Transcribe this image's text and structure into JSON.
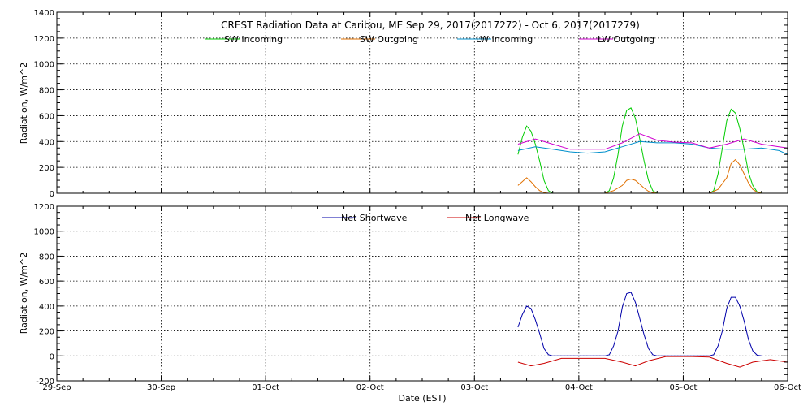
{
  "chart_data": [
    {
      "type": "line",
      "title": "CREST Radiation Data at Caribou, ME   Sep 29, 2017(2017272) - Oct  6, 2017(2017279)",
      "xlabel": "",
      "ylabel": "Radiation, W/m^2",
      "ylim": [
        0,
        1400
      ],
      "yticks": [
        0,
        200,
        400,
        600,
        800,
        1000,
        1200,
        1400
      ],
      "xlim": [
        "2017-09-29",
        "2017-10-06"
      ],
      "grid": true,
      "legend_placement": "top",
      "series": [
        {
          "name": "SW Incoming",
          "color": "#00cc00",
          "x": [
            "2017-10-03 10:00",
            "2017-10-03 11:00",
            "2017-10-03 12:00",
            "2017-10-03 13:00",
            "2017-10-03 14:00",
            "2017-10-03 15:00",
            "2017-10-03 16:00",
            "2017-10-03 17:00",
            "2017-10-03 18:00",
            "2017-10-04 06:00",
            "2017-10-04 07:00",
            "2017-10-04 08:00",
            "2017-10-04 09:00",
            "2017-10-04 10:00",
            "2017-10-04 11:00",
            "2017-10-04 12:00",
            "2017-10-04 13:00",
            "2017-10-04 14:00",
            "2017-10-04 15:00",
            "2017-10-04 16:00",
            "2017-10-04 17:00",
            "2017-10-04 18:00",
            "2017-10-05 06:00",
            "2017-10-05 07:00",
            "2017-10-05 08:00",
            "2017-10-05 09:00",
            "2017-10-05 10:00",
            "2017-10-05 11:00",
            "2017-10-05 12:00",
            "2017-10-05 13:00",
            "2017-10-05 14:00",
            "2017-10-05 15:00",
            "2017-10-05 16:00",
            "2017-10-05 17:00",
            "2017-10-05 18:00"
          ],
          "values": [
            300,
            430,
            520,
            480,
            380,
            250,
            100,
            20,
            0,
            0,
            20,
            120,
            300,
            520,
            640,
            660,
            580,
            420,
            250,
            100,
            20,
            0,
            0,
            20,
            150,
            350,
            560,
            650,
            620,
            500,
            340,
            160,
            60,
            10,
            0
          ]
        },
        {
          "name": "SW Outgoing",
          "color": "#e07000",
          "x": [
            "2017-10-03 10:00",
            "2017-10-03 11:00",
            "2017-10-03 12:00",
            "2017-10-03 13:00",
            "2017-10-03 14:00",
            "2017-10-03 15:00",
            "2017-10-03 16:00",
            "2017-10-03 17:00",
            "2017-10-04 06:00",
            "2017-10-04 08:00",
            "2017-10-04 10:00",
            "2017-10-04 11:00",
            "2017-10-04 12:00",
            "2017-10-04 13:00",
            "2017-10-04 14:00",
            "2017-10-04 15:00",
            "2017-10-04 16:00",
            "2017-10-04 17:00",
            "2017-10-04 18:00",
            "2017-10-05 06:00",
            "2017-10-05 08:00",
            "2017-10-05 10:00",
            "2017-10-05 11:00",
            "2017-10-05 12:00",
            "2017-10-05 13:00",
            "2017-10-05 14:00",
            "2017-10-05 15:00",
            "2017-10-05 16:00",
            "2017-10-05 17:00",
            "2017-10-05 18:00"
          ],
          "values": [
            60,
            90,
            120,
            90,
            50,
            20,
            5,
            0,
            0,
            20,
            60,
            100,
            110,
            100,
            70,
            40,
            15,
            5,
            0,
            0,
            30,
            120,
            230,
            260,
            220,
            150,
            80,
            30,
            8,
            0
          ]
        },
        {
          "name": "LW Incoming",
          "color": "#0090cc",
          "x": [
            "2017-10-03 10:00",
            "2017-10-03 14:00",
            "2017-10-03 18:00",
            "2017-10-03 22:00",
            "2017-10-04 02:00",
            "2017-10-04 06:00",
            "2017-10-04 10:00",
            "2017-10-04 14:00",
            "2017-10-04 18:00",
            "2017-10-04 22:00",
            "2017-10-05 02:00",
            "2017-10-05 06:00",
            "2017-10-05 10:00",
            "2017-10-05 14:00",
            "2017-10-05 18:00",
            "2017-10-05 22:00",
            "2017-10-06 00:00"
          ],
          "values": [
            330,
            360,
            340,
            320,
            310,
            320,
            360,
            400,
            390,
            390,
            380,
            350,
            340,
            340,
            350,
            330,
            300
          ]
        },
        {
          "name": "LW Outgoing",
          "color": "#d000d0",
          "x": [
            "2017-10-03 10:00",
            "2017-10-03 14:00",
            "2017-10-03 18:00",
            "2017-10-03 22:00",
            "2017-10-04 02:00",
            "2017-10-04 06:00",
            "2017-10-04 10:00",
            "2017-10-04 14:00",
            "2017-10-04 18:00",
            "2017-10-04 22:00",
            "2017-10-05 02:00",
            "2017-10-05 06:00",
            "2017-10-05 10:00",
            "2017-10-05 14:00",
            "2017-10-05 18:00",
            "2017-10-05 22:00",
            "2017-10-06 00:00"
          ],
          "values": [
            380,
            420,
            380,
            340,
            340,
            340,
            390,
            460,
            410,
            395,
            390,
            350,
            380,
            420,
            380,
            360,
            350
          ]
        }
      ]
    },
    {
      "type": "line",
      "title": "",
      "xlabel": "Date (EST)",
      "ylabel": "Radiation, W/m^2",
      "ylim": [
        -200,
        1200
      ],
      "yticks": [
        -200,
        0,
        200,
        400,
        600,
        800,
        1000,
        1200
      ],
      "xlim": [
        "2017-09-29",
        "2017-10-06"
      ],
      "categories": [
        "29-Sep",
        "30-Sep",
        "01-Oct",
        "02-Oct",
        "03-Oct",
        "04-Oct",
        "05-Oct",
        "06-Oct"
      ],
      "grid": true,
      "legend_placement": "top",
      "series": [
        {
          "name": "Net Shortwave",
          "color": "#0000aa",
          "x": [
            "2017-10-03 10:00",
            "2017-10-03 11:00",
            "2017-10-03 12:00",
            "2017-10-03 13:00",
            "2017-10-03 14:00",
            "2017-10-03 15:00",
            "2017-10-03 16:00",
            "2017-10-03 17:00",
            "2017-10-03 18:00",
            "2017-10-04 06:00",
            "2017-10-04 07:00",
            "2017-10-04 08:00",
            "2017-10-04 09:00",
            "2017-10-04 10:00",
            "2017-10-04 11:00",
            "2017-10-04 12:00",
            "2017-10-04 13:00",
            "2017-10-04 14:00",
            "2017-10-04 15:00",
            "2017-10-04 16:00",
            "2017-10-04 17:00",
            "2017-10-04 18:00",
            "2017-10-05 06:00",
            "2017-10-05 07:00",
            "2017-10-05 08:00",
            "2017-10-05 09:00",
            "2017-10-05 10:00",
            "2017-10-05 11:00",
            "2017-10-05 12:00",
            "2017-10-05 13:00",
            "2017-10-05 14:00",
            "2017-10-05 15:00",
            "2017-10-05 16:00",
            "2017-10-05 17:00",
            "2017-10-05 18:00"
          ],
          "values": [
            230,
            330,
            400,
            380,
            290,
            180,
            60,
            10,
            0,
            0,
            10,
            80,
            200,
            390,
            500,
            510,
            430,
            300,
            170,
            60,
            10,
            0,
            0,
            10,
            80,
            200,
            380,
            470,
            470,
            400,
            280,
            130,
            40,
            5,
            0
          ]
        },
        {
          "name": "Net Longwave",
          "color": "#cc0000",
          "x": [
            "2017-10-03 10:00",
            "2017-10-03 13:00",
            "2017-10-03 16:00",
            "2017-10-03 20:00",
            "2017-10-04 00:00",
            "2017-10-04 06:00",
            "2017-10-04 10:00",
            "2017-10-04 13:00",
            "2017-10-04 16:00",
            "2017-10-04 20:00",
            "2017-10-05 02:00",
            "2017-10-05 06:00",
            "2017-10-05 10:00",
            "2017-10-05 13:00",
            "2017-10-05 16:00",
            "2017-10-05 20:00",
            "2017-10-06 00:00"
          ],
          "values": [
            -50,
            -80,
            -60,
            -20,
            -20,
            -20,
            -50,
            -80,
            -40,
            -5,
            -5,
            -10,
            -60,
            -90,
            -50,
            -30,
            -50
          ]
        }
      ]
    }
  ]
}
